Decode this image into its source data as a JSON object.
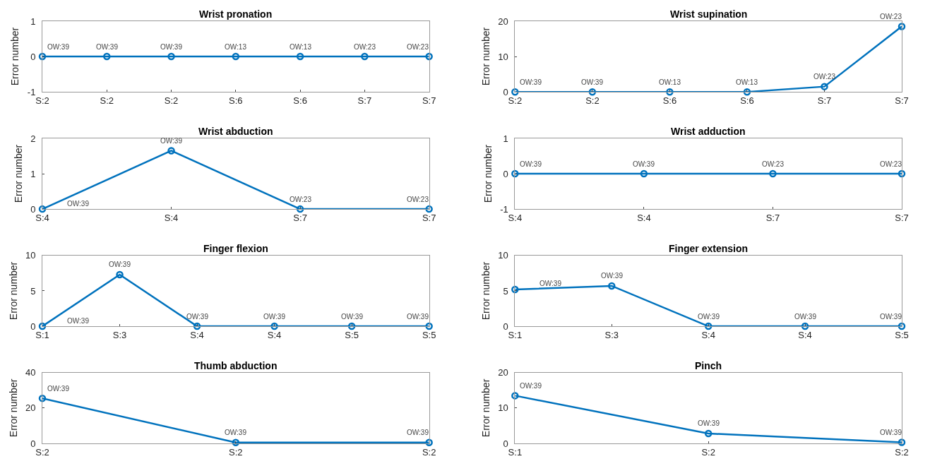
{
  "chart_data": [
    {
      "type": "line",
      "title": "Wrist pronation",
      "ylabel": "Error number",
      "categories": [
        "S:2",
        "S:2",
        "S:2",
        "S:6",
        "S:6",
        "S:7",
        "S:7"
      ],
      "series": [
        {
          "color": "#0072bd",
          "values": [
            0,
            0,
            0,
            0,
            0,
            0,
            0
          ]
        }
      ],
      "annotations": [
        "OW:39",
        "OW:39",
        "OW:39",
        "OW:13",
        "OW:13",
        "OW:23",
        "OW:23"
      ],
      "ylim": [
        -1,
        1
      ],
      "yticks": [
        -1,
        0,
        1
      ],
      "marker": "circle"
    },
    {
      "type": "line",
      "title": "Wrist supination",
      "ylabel": "Error number",
      "categories": [
        "S:2",
        "S:2",
        "S:6",
        "S:6",
        "S:7",
        "S:7"
      ],
      "series": [
        {
          "color": "#0072bd",
          "values": [
            0,
            0,
            0,
            0,
            1.5,
            18.5
          ]
        }
      ],
      "annotations": [
        "OW:39",
        "OW:39",
        "OW:13",
        "OW:13",
        "OW:23",
        "OW:23"
      ],
      "ylim": [
        0,
        20
      ],
      "yticks": [
        0,
        10,
        20
      ],
      "marker": "circle"
    },
    {
      "type": "line",
      "title": "Wrist abduction",
      "ylabel": "Error number",
      "categories": [
        "S:4",
        "S:4",
        "S:7",
        "S:7"
      ],
      "series": [
        {
          "color": "#0072bd",
          "values": [
            0,
            1.65,
            0,
            0
          ]
        }
      ],
      "annotations": [
        "OW:39",
        "OW:39",
        "OW:23",
        "OW:23"
      ],
      "ylim": [
        0,
        2
      ],
      "yticks": [
        0,
        1,
        2
      ],
      "marker": "circle"
    },
    {
      "type": "line",
      "title": "Wrist adduction",
      "ylabel": "Error number",
      "categories": [
        "S:4",
        "S:4",
        "S:7",
        "S:7"
      ],
      "series": [
        {
          "color": "#0072bd",
          "values": [
            0,
            0,
            0,
            0
          ]
        }
      ],
      "annotations": [
        "OW:39",
        "OW:39",
        "OW:23",
        "OW:23"
      ],
      "ylim": [
        -1,
        1
      ],
      "yticks": [
        -1,
        0,
        1
      ],
      "marker": "circle"
    },
    {
      "type": "line",
      "title": "Finger flexion",
      "ylabel": "Error number",
      "categories": [
        "S:1",
        "S:3",
        "S:4",
        "S:4",
        "S:5",
        "S:5"
      ],
      "series": [
        {
          "color": "#0072bd",
          "values": [
            0,
            7.3,
            0,
            0,
            0,
            0
          ]
        }
      ],
      "annotations": [
        "OW:39",
        "OW:39",
        "OW:39",
        "OW:39",
        "OW:39",
        "OW:39"
      ],
      "ylim": [
        0,
        10
      ],
      "yticks": [
        0,
        5,
        10
      ],
      "marker": "circle"
    },
    {
      "type": "line",
      "title": "Finger extension",
      "ylabel": "Error number",
      "categories": [
        "S:1",
        "S:3",
        "S:4",
        "S:4",
        "S:5"
      ],
      "series": [
        {
          "color": "#0072bd",
          "values": [
            5.2,
            5.7,
            0,
            0,
            0
          ]
        }
      ],
      "annotations": [
        "OW:39",
        "OW:39",
        "OW:39",
        "OW:39",
        "OW:39"
      ],
      "ylim": [
        0,
        10
      ],
      "yticks": [
        0,
        5,
        10
      ],
      "marker": "circle"
    },
    {
      "type": "line",
      "title": "Thumb abduction",
      "ylabel": "Error number",
      "categories": [
        "S:2",
        "S:2",
        "S:2"
      ],
      "series": [
        {
          "color": "#0072bd",
          "values": [
            25.5,
            0.5,
            0.5
          ]
        }
      ],
      "annotations": [
        "OW:39",
        "OW:39",
        "OW:39"
      ],
      "ylim": [
        0,
        40
      ],
      "yticks": [
        0,
        20,
        40
      ],
      "marker": "circle"
    },
    {
      "type": "line",
      "title": "Pinch",
      "ylabel": "Error number",
      "categories": [
        "S:1",
        "S:2",
        "S:2"
      ],
      "series": [
        {
          "color": "#0072bd",
          "values": [
            13.5,
            2.8,
            0.3
          ]
        }
      ],
      "annotations": [
        "OW:39",
        "OW:39",
        "OW:39"
      ],
      "ylim": [
        0,
        20
      ],
      "yticks": [
        0,
        10,
        20
      ],
      "marker": "circle"
    }
  ]
}
